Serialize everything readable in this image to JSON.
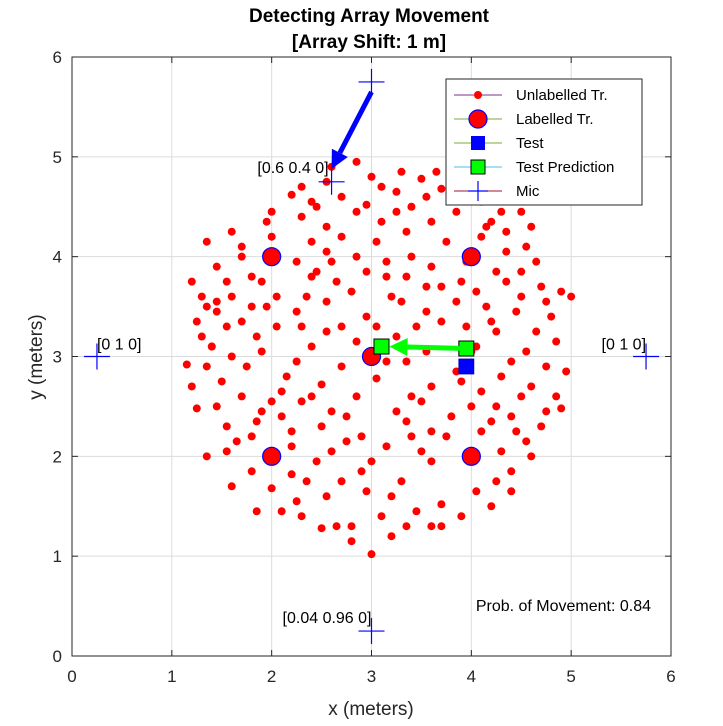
{
  "chart_data": {
    "type": "scatter",
    "title": "Detecting Array Movement",
    "subtitle": "[Array Shift: 1 m]",
    "xlabel": "x (meters)",
    "ylabel": "y (meters)",
    "xlim": [
      0,
      6
    ],
    "ylim": [
      0,
      6
    ],
    "xticks": [
      "0",
      "1",
      "2",
      "3",
      "4",
      "5",
      "6"
    ],
    "yticks": [
      "0",
      "1",
      "2",
      "3",
      "4",
      "5",
      "6"
    ],
    "grid": true,
    "legend_position": "top-right",
    "colors": {
      "unlabelled": "#ff0000",
      "labelled": "#ff0000",
      "labelled_edge": "#0000ff",
      "test": "#0000ff",
      "prediction": "#00ff00",
      "mic": "#0000ff",
      "arrow_blue": "#0000ff",
      "arrow_green": "#00ff00"
    },
    "legend": [
      {
        "label": "Unlabelled Tr.",
        "marker": "dot",
        "line": "#7e2f8e"
      },
      {
        "label": "Labelled Tr.",
        "marker": "big-circle",
        "line": "#77ac30"
      },
      {
        "label": "Test",
        "marker": "blue-square",
        "line": "#77ac30"
      },
      {
        "label": "Test Prediction",
        "marker": "green-square",
        "line": "#4dbeee"
      },
      {
        "label": "Mic",
        "marker": "plus",
        "line": "#a2142f"
      }
    ],
    "series": [
      {
        "name": "Unlabelled Tr.",
        "points": [
          [
            3.0,
            1.02
          ],
          [
            2.8,
            1.15
          ],
          [
            3.2,
            1.2
          ],
          [
            2.65,
            1.3
          ],
          [
            3.35,
            1.3
          ],
          [
            2.5,
            1.28
          ],
          [
            3.6,
            1.3
          ],
          [
            2.3,
            1.4
          ],
          [
            3.7,
            1.3
          ],
          [
            2.1,
            1.45
          ],
          [
            3.9,
            1.4
          ],
          [
            1.85,
            1.45
          ],
          [
            4.2,
            1.5
          ],
          [
            2.25,
            1.55
          ],
          [
            2.8,
            1.3
          ],
          [
            3.1,
            1.4
          ],
          [
            2.95,
            1.65
          ],
          [
            3.45,
            1.45
          ],
          [
            2.55,
            1.6
          ],
          [
            3.7,
            1.52
          ],
          [
            2.0,
            1.68
          ],
          [
            4.05,
            1.65
          ],
          [
            2.35,
            1.75
          ],
          [
            3.2,
            1.6
          ],
          [
            4.4,
            1.85
          ],
          [
            1.8,
            1.85
          ],
          [
            4.25,
            1.75
          ],
          [
            2.7,
            1.75
          ],
          [
            3.3,
            1.75
          ],
          [
            2.9,
            1.85
          ],
          [
            3.6,
            1.95
          ],
          [
            2.2,
            1.82
          ],
          [
            4.4,
            1.65
          ],
          [
            1.6,
            1.7
          ],
          [
            3.0,
            1.95
          ],
          [
            2.45,
            1.95
          ],
          [
            4.6,
            2.0
          ],
          [
            1.35,
            2.0
          ],
          [
            4.55,
            2.15
          ],
          [
            1.65,
            2.15
          ],
          [
            3.5,
            2.05
          ],
          [
            2.6,
            2.05
          ],
          [
            3.15,
            2.1
          ],
          [
            4.3,
            2.05
          ],
          [
            1.8,
            2.2
          ],
          [
            4.1,
            2.25
          ],
          [
            2.2,
            2.1
          ],
          [
            3.4,
            2.2
          ],
          [
            2.9,
            2.2
          ],
          [
            4.45,
            2.25
          ],
          [
            4.7,
            2.3
          ],
          [
            1.55,
            2.3
          ],
          [
            4.9,
            2.48
          ],
          [
            1.25,
            2.48
          ],
          [
            1.45,
            2.5
          ],
          [
            4.75,
            2.45
          ],
          [
            3.8,
            2.4
          ],
          [
            2.1,
            2.4
          ],
          [
            2.5,
            2.3
          ],
          [
            3.6,
            2.25
          ],
          [
            4.2,
            2.35
          ],
          [
            1.85,
            2.35
          ],
          [
            2.75,
            2.4
          ],
          [
            3.25,
            2.45
          ],
          [
            4.0,
            2.5
          ],
          [
            3.5,
            2.55
          ],
          [
            2.3,
            2.55
          ],
          [
            4.5,
            2.6
          ],
          [
            1.7,
            2.6
          ],
          [
            2.0,
            2.55
          ],
          [
            2.85,
            2.6
          ],
          [
            4.25,
            2.5
          ],
          [
            4.6,
            2.7
          ],
          [
            4.85,
            2.6
          ],
          [
            1.2,
            2.7
          ],
          [
            1.5,
            2.75
          ],
          [
            3.6,
            2.7
          ],
          [
            2.5,
            2.72
          ],
          [
            3.05,
            2.78
          ],
          [
            2.15,
            2.8
          ],
          [
            3.85,
            2.85
          ],
          [
            2.7,
            2.9
          ],
          [
            1.35,
            2.9
          ],
          [
            1.15,
            2.92
          ],
          [
            1.4,
            3.1
          ],
          [
            1.6,
            3.0
          ],
          [
            1.9,
            3.05
          ],
          [
            1.75,
            2.9
          ],
          [
            4.4,
            2.95
          ],
          [
            4.55,
            3.05
          ],
          [
            4.75,
            2.9
          ],
          [
            2.4,
            3.1
          ],
          [
            2.25,
            2.95
          ],
          [
            3.35,
            2.95
          ],
          [
            2.85,
            3.15
          ],
          [
            4.05,
            3.1
          ],
          [
            1.3,
            3.2
          ],
          [
            1.7,
            3.35
          ],
          [
            1.55,
            3.3
          ],
          [
            2.05,
            3.3
          ],
          [
            2.55,
            3.25
          ],
          [
            3.25,
            3.2
          ],
          [
            3.45,
            3.3
          ],
          [
            4.25,
            3.25
          ],
          [
            1.85,
            3.2
          ],
          [
            2.7,
            3.3
          ],
          [
            3.95,
            3.3
          ],
          [
            4.65,
            3.25
          ],
          [
            4.8,
            3.4
          ],
          [
            4.45,
            3.45
          ],
          [
            1.45,
            3.45
          ],
          [
            1.8,
            3.5
          ],
          [
            2.25,
            3.45
          ],
          [
            2.95,
            3.4
          ],
          [
            3.55,
            3.45
          ],
          [
            4.2,
            3.35
          ],
          [
            3.85,
            3.55
          ],
          [
            3.05,
            3.3
          ],
          [
            4.9,
            3.65
          ],
          [
            2.55,
            3.55
          ],
          [
            1.3,
            3.6
          ],
          [
            1.45,
            3.55
          ],
          [
            1.6,
            3.6
          ],
          [
            2.05,
            3.6
          ],
          [
            3.3,
            3.55
          ],
          [
            3.7,
            3.7
          ],
          [
            4.15,
            3.5
          ],
          [
            4.5,
            3.6
          ],
          [
            4.75,
            3.55
          ],
          [
            5.0,
            3.6
          ],
          [
            2.8,
            3.65
          ],
          [
            1.35,
            3.5
          ],
          [
            1.9,
            3.75
          ],
          [
            2.4,
            3.8
          ],
          [
            3.15,
            3.8
          ],
          [
            3.9,
            3.75
          ],
          [
            4.7,
            3.7
          ],
          [
            1.55,
            3.75
          ],
          [
            4.35,
            3.75
          ],
          [
            2.65,
            3.75
          ],
          [
            1.2,
            3.75
          ],
          [
            4.25,
            3.85
          ],
          [
            2.95,
            3.85
          ],
          [
            4.5,
            3.85
          ],
          [
            1.45,
            3.9
          ],
          [
            2.25,
            3.95
          ],
          [
            3.6,
            3.9
          ],
          [
            4.65,
            3.95
          ],
          [
            1.7,
            4.0
          ],
          [
            2.85,
            4.0
          ],
          [
            3.15,
            3.95
          ],
          [
            4.35,
            4.05
          ],
          [
            3.95,
            3.95
          ],
          [
            2.55,
            4.05
          ],
          [
            3.4,
            4.0
          ],
          [
            4.55,
            4.1
          ],
          [
            1.35,
            4.15
          ],
          [
            1.7,
            4.1
          ],
          [
            2.4,
            4.15
          ],
          [
            3.05,
            4.15
          ],
          [
            3.75,
            4.15
          ],
          [
            4.1,
            4.2
          ],
          [
            2.0,
            4.2
          ],
          [
            2.7,
            4.2
          ],
          [
            4.35,
            4.25
          ],
          [
            1.6,
            4.25
          ],
          [
            3.35,
            4.25
          ],
          [
            4.6,
            4.3
          ],
          [
            1.95,
            4.35
          ],
          [
            2.55,
            4.3
          ],
          [
            3.1,
            4.35
          ],
          [
            3.6,
            4.35
          ],
          [
            4.2,
            4.35
          ],
          [
            2.3,
            4.4
          ],
          [
            2.85,
            4.45
          ],
          [
            3.85,
            4.45
          ],
          [
            3.4,
            4.5
          ],
          [
            4.3,
            4.45
          ],
          [
            2.0,
            4.45
          ],
          [
            4.5,
            4.45
          ],
          [
            2.4,
            4.55
          ],
          [
            2.7,
            4.6
          ],
          [
            3.25,
            4.65
          ],
          [
            3.55,
            4.6
          ],
          [
            3.9,
            4.6
          ],
          [
            4.1,
            4.55
          ],
          [
            2.2,
            4.62
          ],
          [
            2.95,
            4.52
          ],
          [
            4.0,
            4.62
          ],
          [
            3.7,
            4.68
          ],
          [
            2.3,
            4.7
          ],
          [
            3.5,
            4.78
          ],
          [
            2.55,
            4.75
          ],
          [
            3.1,
            4.7
          ],
          [
            3.8,
            4.72
          ],
          [
            4.2,
            4.6
          ],
          [
            3.3,
            4.85
          ],
          [
            4.05,
            4.8
          ],
          [
            2.6,
            4.9
          ],
          [
            3.65,
            4.85
          ],
          [
            4.15,
            4.95
          ],
          [
            2.85,
            4.95
          ],
          [
            3.0,
            4.8
          ],
          [
            3.9,
            4.92
          ],
          [
            1.4,
            3.1
          ],
          [
            4.95,
            2.85
          ],
          [
            1.25,
            3.35
          ],
          [
            4.85,
            3.15
          ],
          [
            2.2,
            2.25
          ],
          [
            3.75,
            2.2
          ],
          [
            2.45,
            3.85
          ],
          [
            3.55,
            3.05
          ],
          [
            2.4,
            2.6
          ],
          [
            3.9,
            2.75
          ],
          [
            2.0,
            3.95
          ],
          [
            4.0,
            3.05
          ],
          [
            3.15,
            2.95
          ],
          [
            2.6,
            2.45
          ],
          [
            3.4,
            2.6
          ],
          [
            3.55,
            3.7
          ],
          [
            2.3,
            3.3
          ],
          [
            3.7,
            3.35
          ],
          [
            2.1,
            2.65
          ],
          [
            4.3,
            2.8
          ],
          [
            2.35,
            3.6
          ],
          [
            3.2,
            3.6
          ],
          [
            2.75,
            2.15
          ],
          [
            3.35,
            2.35
          ],
          [
            4.1,
            2.65
          ],
          [
            1.9,
            2.45
          ],
          [
            1.95,
            3.5
          ],
          [
            4.05,
            3.65
          ],
          [
            2.6,
            3.95
          ],
          [
            3.35,
            3.8
          ],
          [
            3.25,
            4.45
          ],
          [
            2.45,
            4.5
          ],
          [
            4.15,
            4.3
          ],
          [
            1.8,
            3.8
          ],
          [
            1.55,
            2.05
          ],
          [
            4.4,
            2.4
          ]
        ]
      },
      {
        "name": "Labelled Tr.",
        "points": [
          [
            2,
            4
          ],
          [
            4,
            4
          ],
          [
            3,
            3
          ],
          [
            2,
            2
          ],
          [
            4,
            2
          ]
        ]
      },
      {
        "name": "Test",
        "points": [
          [
            3.95,
            2.9
          ]
        ]
      },
      {
        "name": "Test Prediction",
        "points": [
          [
            3.1,
            3.1
          ],
          [
            3.95,
            3.08
          ]
        ]
      },
      {
        "name": "Mic",
        "points": [
          [
            3.0,
            5.75
          ],
          [
            2.6,
            4.75
          ],
          [
            0.25,
            3.0
          ],
          [
            5.75,
            3.0
          ],
          [
            3.0,
            0.25
          ]
        ]
      }
    ],
    "arrows": [
      {
        "from": [
          3.0,
          5.65
        ],
        "to": [
          2.6,
          4.88
        ],
        "color": "#0000ff"
      },
      {
        "from": [
          3.95,
          3.08
        ],
        "to": [
          3.18,
          3.1
        ],
        "color": "#00ff00"
      }
    ],
    "annotations": [
      {
        "text": "[0.6 0.4 0]",
        "x": 2.57,
        "y": 4.84,
        "anchor": "end"
      },
      {
        "text": "[0 1 0]",
        "x": 0.25,
        "y": 3.07,
        "anchor": "start"
      },
      {
        "text": "[0 1 0]",
        "x": 5.75,
        "y": 3.07,
        "anchor": "end"
      },
      {
        "text": "[0.04 0.96 0]",
        "x": 3.0,
        "y": 0.33,
        "anchor": "end"
      },
      {
        "text": "Prob. of Movement: 0.84",
        "x": 5.8,
        "y": 0.45,
        "anchor": "end"
      }
    ]
  }
}
